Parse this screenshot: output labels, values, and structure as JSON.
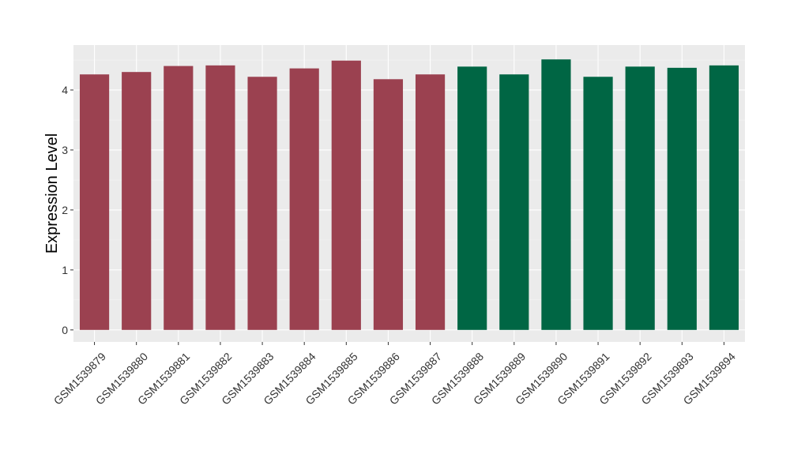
{
  "chart_data": {
    "type": "bar",
    "title": "",
    "xlabel": "",
    "ylabel": "Expression Level",
    "ylim": [
      -0.2,
      4.75
    ],
    "yticks": [
      0,
      1,
      2,
      3,
      4
    ],
    "grid": true,
    "legend": "none",
    "categories": [
      "GSM1539879",
      "GSM1539880",
      "GSM1539881",
      "GSM1539882",
      "GSM1539883",
      "GSM1539884",
      "GSM1539885",
      "GSM1539886",
      "GSM1539887",
      "GSM1539888",
      "GSM1539889",
      "GSM1539890",
      "GSM1539891",
      "GSM1539892",
      "GSM1539893",
      "GSM1539894"
    ],
    "values": [
      4.26,
      4.3,
      4.4,
      4.41,
      4.22,
      4.36,
      4.49,
      4.18,
      4.26,
      4.39,
      4.26,
      4.51,
      4.22,
      4.39,
      4.37,
      4.41
    ],
    "group_of_each_bar": [
      0,
      0,
      0,
      0,
      0,
      0,
      0,
      0,
      0,
      1,
      1,
      1,
      1,
      1,
      1,
      1
    ],
    "group_colors": [
      "#9b4150",
      "#006644"
    ]
  }
}
